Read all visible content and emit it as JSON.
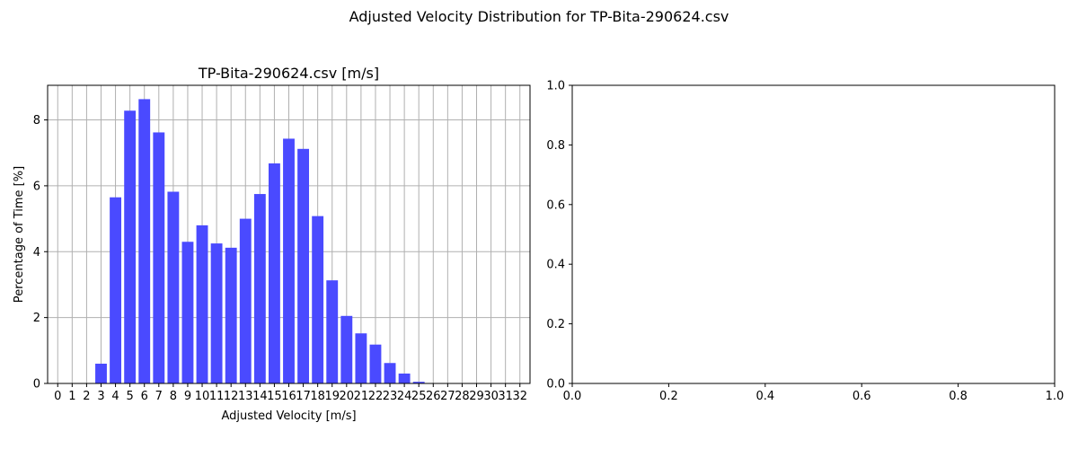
{
  "figure": {
    "suptitle": "Adjusted Velocity Distribution for TP-Bita-290624.csv"
  },
  "chart_data": [
    {
      "type": "bar",
      "title": "TP-Bita-290624.csv [m/s]",
      "xlabel": "Adjusted Velocity [m/s]",
      "ylabel": "Percentage of Time [%]",
      "categories": [
        "0",
        "1",
        "2",
        "3",
        "4",
        "5",
        "6",
        "7",
        "8",
        "9",
        "10",
        "11",
        "12",
        "13",
        "14",
        "15",
        "16",
        "17",
        "18",
        "19",
        "20",
        "21",
        "22",
        "23",
        "24",
        "25",
        "26",
        "27",
        "28",
        "29",
        "30",
        "31",
        "32"
      ],
      "values": [
        0,
        0,
        0,
        0.6,
        5.65,
        8.28,
        8.63,
        7.62,
        5.82,
        4.3,
        4.8,
        4.25,
        4.12,
        5.0,
        5.75,
        6.68,
        7.43,
        7.12,
        5.08,
        3.13,
        2.05,
        1.52,
        1.18,
        0.62,
        0.3,
        0.05,
        0,
        0,
        0,
        0,
        0,
        0,
        0
      ],
      "ylim": [
        0,
        9.05
      ],
      "yticks": [
        0,
        2,
        4,
        6,
        8
      ],
      "grid": true,
      "color": "#4a4aff"
    },
    {
      "type": "empty",
      "title": "",
      "xlabel": "",
      "ylabel": "",
      "xlim": [
        0,
        1
      ],
      "ylim": [
        0,
        1
      ],
      "xticks": [
        "0.0",
        "0.2",
        "0.4",
        "0.6",
        "0.8",
        "1.0"
      ],
      "yticks": [
        "0.0",
        "0.2",
        "0.4",
        "0.6",
        "0.8",
        "1.0"
      ],
      "grid": false
    }
  ]
}
